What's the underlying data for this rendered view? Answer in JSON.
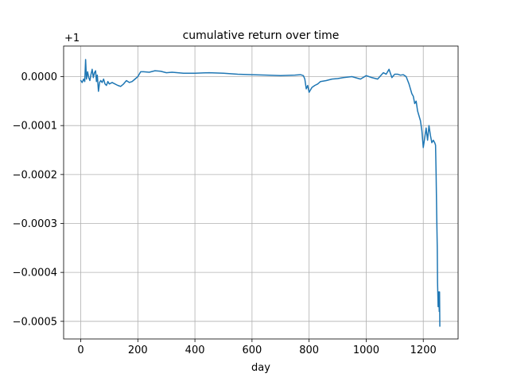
{
  "chart_data": {
    "type": "line",
    "title": "cumulative return over time",
    "xlabel": "day",
    "ylabel": "",
    "offset_label": "+1",
    "xlim": [
      -60,
      1322
    ],
    "ylim": [
      -0.000536,
      6.25e-05
    ],
    "xticks": [
      0,
      200,
      400,
      600,
      800,
      1000,
      1200
    ],
    "xtick_labels": [
      "0",
      "200",
      "400",
      "600",
      "800",
      "1000",
      "1200"
    ],
    "yticks": [
      0.0,
      -0.0001,
      -0.0002,
      -0.0003,
      -0.0004,
      -0.0005
    ],
    "ytick_labels": [
      "0.0000",
      "−0.0001",
      "−0.0002",
      "−0.0003",
      "−0.0004",
      "−0.0005"
    ],
    "grid": true,
    "line_color": "#1f77b4",
    "series": [
      {
        "name": "cumulative return",
        "x": [
          0,
          5,
          10,
          14,
          17,
          20,
          24,
          28,
          32,
          36,
          40,
          44,
          48,
          52,
          55,
          58,
          62,
          66,
          70,
          75,
          80,
          85,
          90,
          95,
          100,
          110,
          120,
          130,
          140,
          150,
          160,
          170,
          180,
          190,
          200,
          210,
          220,
          240,
          260,
          280,
          300,
          320,
          340,
          360,
          380,
          400,
          450,
          500,
          550,
          600,
          650,
          700,
          750,
          770,
          780,
          785,
          790,
          795,
          800,
          810,
          820,
          830,
          840,
          860,
          880,
          900,
          920,
          950,
          980,
          1000,
          1020,
          1040,
          1060,
          1070,
          1080,
          1090,
          1100,
          1110,
          1120,
          1130,
          1140,
          1150,
          1155,
          1160,
          1165,
          1170,
          1175,
          1180,
          1185,
          1190,
          1195,
          1200,
          1205,
          1210,
          1215,
          1220,
          1225,
          1230,
          1235,
          1240,
          1243,
          1245,
          1247,
          1249,
          1250,
          1252,
          1254,
          1256,
          1257,
          1258
        ],
        "values": [
          -8e-06,
          -1.2e-05,
          -5e-06,
          -1e-05,
          3.5e-05,
          -5e-06,
          1e-05,
          -2e-06,
          -8e-06,
          5e-06,
          1.5e-05,
          -2e-06,
          8e-06,
          1.2e-05,
          -1e-05,
          3e-06,
          -3e-05,
          -1.2e-05,
          -8e-06,
          -1.2e-05,
          -5e-06,
          -1.5e-05,
          -1.8e-05,
          -1e-05,
          -1.5e-05,
          -1.2e-05,
          -1.5e-05,
          -1.8e-05,
          -2e-05,
          -1.5e-05,
          -8e-06,
          -1.2e-05,
          -1e-05,
          -5e-06,
          0.0,
          1e-05,
          1e-05,
          9e-06,
          1.2e-05,
          1.1e-05,
          8e-06,
          9e-06,
          8e-06,
          7e-06,
          7e-06,
          7e-06,
          8e-06,
          7e-06,
          5e-06,
          4e-06,
          3e-06,
          2e-06,
          3e-06,
          4e-06,
          2e-06,
          -5e-06,
          -2.5e-05,
          -1.8e-05,
          -3.2e-05,
          -2.2e-05,
          -1.8e-05,
          -1.5e-05,
          -1e-05,
          -8e-06,
          -5e-06,
          -4e-06,
          -2e-06,
          0.0,
          -5e-06,
          2e-06,
          -2e-06,
          -5e-06,
          8e-06,
          5e-06,
          1.5e-05,
          -2e-06,
          5e-06,
          5e-06,
          3e-06,
          4e-06,
          0.0,
          -1.5e-05,
          -2.5e-05,
          -3.5e-05,
          -4e-05,
          -5.5e-05,
          -5e-05,
          -7e-05,
          -8e-05,
          -9e-05,
          -0.00011,
          -0.000145,
          -0.000125,
          -0.000105,
          -0.00013,
          -0.0001,
          -0.00012,
          -0.000135,
          -0.00013,
          -0.000135,
          -0.00014,
          -0.0002,
          -0.00028,
          -0.00035,
          -0.00042,
          -0.00047,
          -0.00044,
          -0.00048,
          -0.00044,
          -0.00051
        ]
      }
    ]
  }
}
